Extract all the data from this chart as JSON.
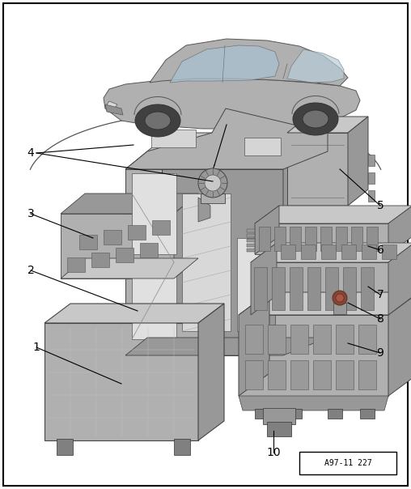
{
  "figure_id": "A97-11 227",
  "background_color": "#ffffff",
  "border_color": "#000000",
  "lc": "#000000",
  "tc": "#000000",
  "gray1": "#c8c8c8",
  "gray2": "#b0b0b0",
  "gray3": "#989898",
  "gray4": "#808080",
  "gray5": "#d8d8d8",
  "label_fs": 10,
  "figid_fs": 7
}
